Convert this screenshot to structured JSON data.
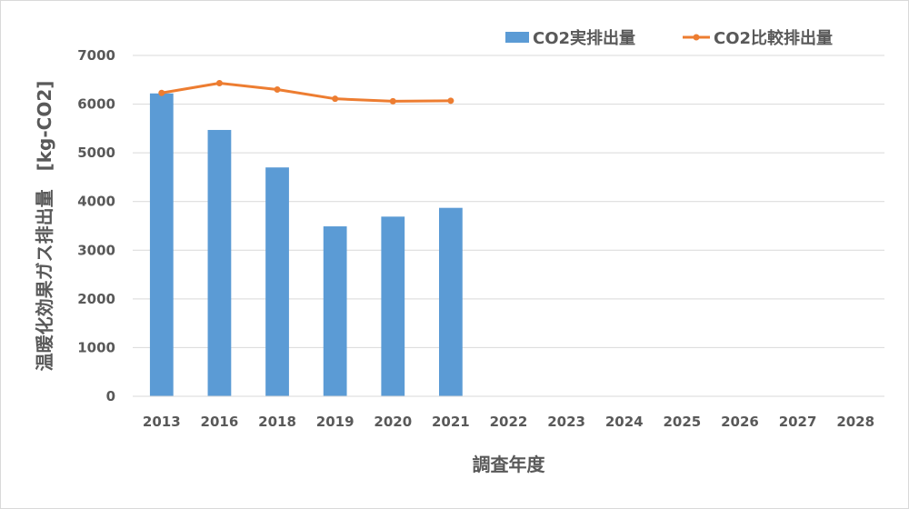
{
  "chart_data": {
    "type": "bar",
    "categories": [
      "2013",
      "2016",
      "2018",
      "2019",
      "2020",
      "2021",
      "2022",
      "2023",
      "2024",
      "2025",
      "2026",
      "2027",
      "2028"
    ],
    "series": [
      {
        "name": "CO2実排出量",
        "type": "bar",
        "color": "#5b9bd5",
        "values": [
          6220,
          5470,
          4700,
          3490,
          3690,
          3870,
          null,
          null,
          null,
          null,
          null,
          null,
          null
        ]
      },
      {
        "name": "CO2比較排出量",
        "type": "line",
        "color": "#ed7d31",
        "values": [
          6230,
          6430,
          6300,
          6110,
          6060,
          6070,
          null,
          null,
          null,
          null,
          null,
          null,
          null
        ]
      }
    ],
    "xlabel": "調査年度",
    "ylabel": "温暖化効果ガス排出量　[kg-CO2]",
    "ylim": [
      0,
      7000
    ],
    "yticks": [
      0,
      1000,
      2000,
      3000,
      4000,
      5000,
      6000,
      7000
    ],
    "grid": true,
    "legend_position": "top-right"
  }
}
